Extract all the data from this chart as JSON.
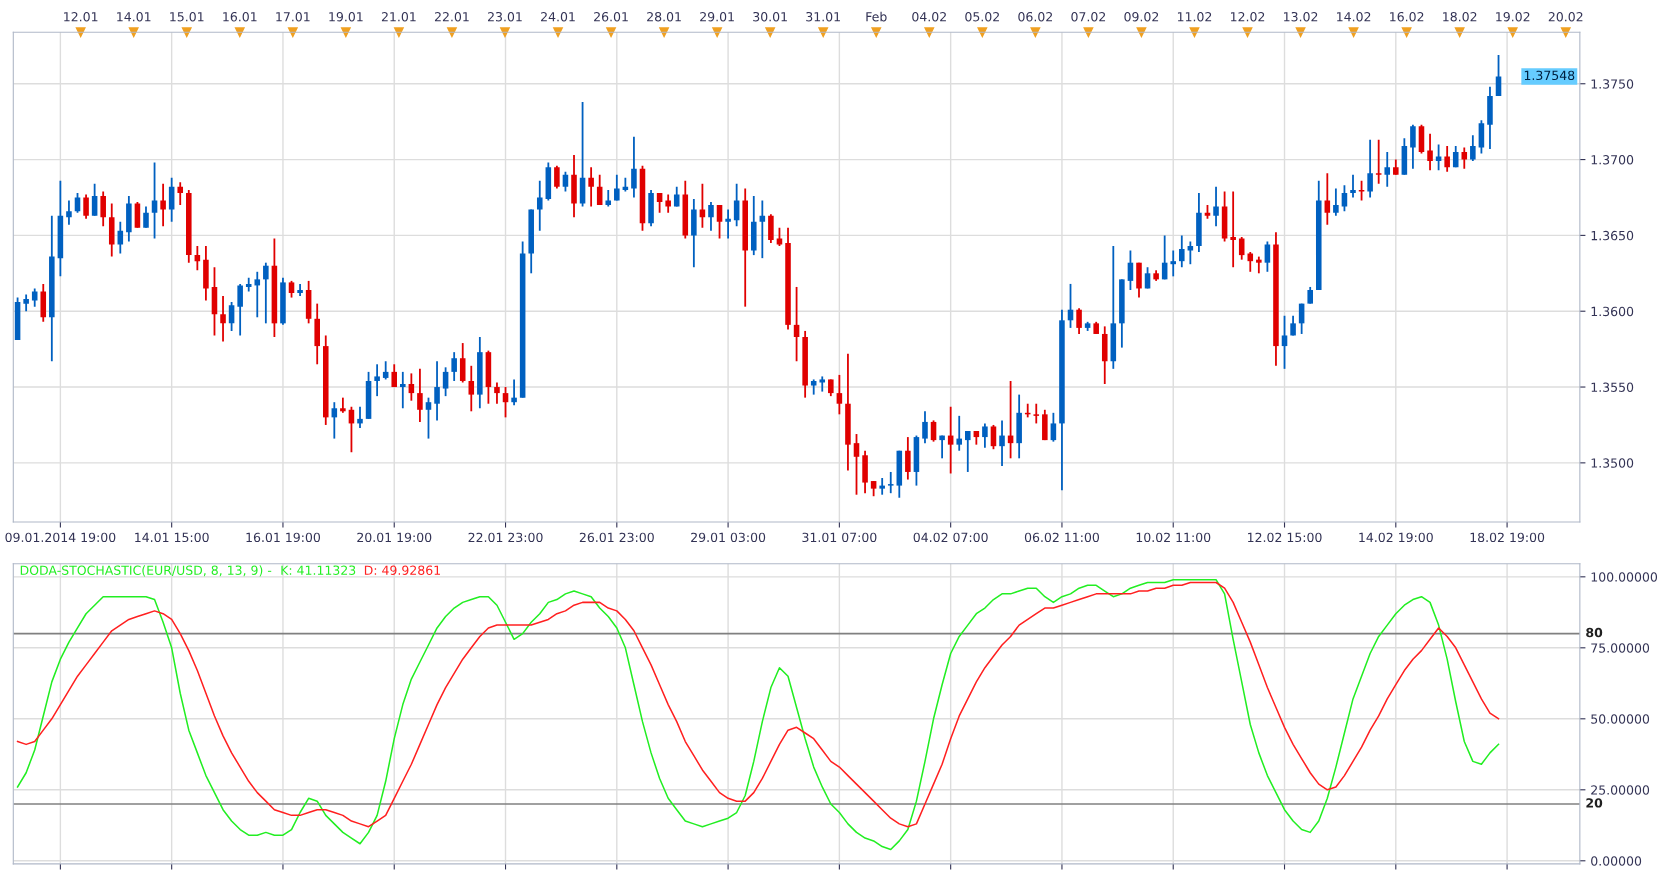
{
  "chart_data": [
    {
      "type": "candlestick",
      "categories": [
        null,
        null,
        null,
        null,
        null,
        "09.01.2014 19:00",
        null,
        null,
        null,
        null,
        null,
        null,
        null,
        null,
        null,
        null,
        null,
        null,
        "14.01 15:00",
        null,
        null,
        null,
        null,
        null,
        null,
        null,
        null,
        null,
        null,
        null,
        null,
        "16.01 19:00",
        null,
        null,
        null,
        null,
        null,
        null,
        null,
        null,
        null,
        null,
        null,
        null,
        "20.01 19:00",
        null,
        null,
        null,
        null,
        null,
        null,
        null,
        null,
        null,
        null,
        null,
        null,
        "22.01 23:00",
        null,
        null,
        null,
        null,
        null,
        null,
        null,
        null,
        null,
        null,
        null,
        null,
        "26.01 23:00",
        null,
        null,
        null,
        null,
        null,
        null,
        null,
        null,
        null,
        null,
        null,
        null,
        "29.01 03:00",
        null,
        null,
        null,
        null,
        null,
        null,
        null,
        null,
        null,
        null,
        null,
        null,
        "31.01 07:00",
        null,
        null,
        null,
        null,
        null,
        null,
        null,
        null,
        null,
        null,
        null,
        null,
        "04.02 07:00",
        null,
        null,
        null,
        null,
        null,
        null,
        null,
        null,
        null,
        null,
        null,
        null,
        "06.02 11:00",
        null,
        null,
        null,
        null,
        null,
        null,
        null,
        null,
        null,
        null,
        null,
        null,
        "10.02 11:00",
        null,
        null,
        null,
        null,
        null,
        null,
        null,
        null,
        null,
        null,
        null,
        null,
        "12.02 15:00",
        null,
        null,
        null,
        null,
        null,
        null,
        null,
        null,
        null,
        null,
        null,
        null,
        "14.02 19:00",
        null,
        null,
        null,
        null,
        null,
        null,
        null,
        null,
        null,
        null,
        null,
        null,
        "18.02 19:00",
        null,
        null,
        null,
        null,
        null,
        null,
        null,
        null
      ],
      "ohlc": [
        [
          1.3581,
          1.3609,
          1.3581,
          1.3606
        ],
        [
          1.3605,
          1.3611,
          1.36,
          1.3608
        ],
        [
          1.3607,
          1.3615,
          1.3603,
          1.3613
        ],
        [
          1.3613,
          1.3618,
          1.3593,
          1.3596
        ],
        [
          1.3596,
          1.3663,
          1.3567,
          1.3636
        ],
        [
          1.3635,
          1.3686,
          1.3623,
          1.3663
        ],
        [
          1.3662,
          1.3673,
          1.3657,
          1.3666
        ],
        [
          1.3666,
          1.3678,
          1.3665,
          1.3675
        ],
        [
          1.3675,
          1.3677,
          1.3661,
          1.3663
        ],
        [
          1.3663,
          1.3684,
          1.3663,
          1.3676
        ],
        [
          1.3676,
          1.3679,
          1.3656,
          1.3662
        ],
        [
          1.3662,
          1.3671,
          1.3636,
          1.3644
        ],
        [
          1.3644,
          1.3659,
          1.3638,
          1.3653
        ],
        [
          1.3652,
          1.3676,
          1.3646,
          1.3671
        ],
        [
          1.3671,
          1.3672,
          1.3655,
          1.3655
        ],
        [
          1.3655,
          1.3669,
          1.3655,
          1.3665
        ],
        [
          1.3665,
          1.3698,
          1.3648,
          1.3673
        ],
        [
          1.3673,
          1.3684,
          1.3656,
          1.3667
        ],
        [
          1.3667,
          1.3688,
          1.3659,
          1.3682
        ],
        [
          1.3682,
          1.3685,
          1.367,
          1.3678
        ],
        [
          1.3678,
          1.368,
          1.3632,
          1.3637
        ],
        [
          1.3637,
          1.3643,
          1.3627,
          1.3633
        ],
        [
          1.3634,
          1.3643,
          1.3607,
          1.3615
        ],
        [
          1.3616,
          1.3629,
          1.3584,
          1.3598
        ],
        [
          1.3598,
          1.361,
          1.358,
          1.3592
        ],
        [
          1.3592,
          1.3606,
          1.3587,
          1.3604
        ],
        [
          1.3603,
          1.3618,
          1.3584,
          1.3617
        ],
        [
          1.3616,
          1.3622,
          1.3613,
          1.3618
        ],
        [
          1.3617,
          1.3626,
          1.3596,
          1.3621
        ],
        [
          1.3621,
          1.3632,
          1.3592,
          1.363
        ],
        [
          1.363,
          1.3648,
          1.3583,
          1.3592
        ],
        [
          1.3592,
          1.3622,
          1.3591,
          1.3619
        ],
        [
          1.3619,
          1.362,
          1.3609,
          1.3612
        ],
        [
          1.3612,
          1.3618,
          1.361,
          1.3614
        ],
        [
          1.3614,
          1.362,
          1.3592,
          1.3595
        ],
        [
          1.3595,
          1.3605,
          1.3565,
          1.3577
        ],
        [
          1.3577,
          1.3584,
          1.3525,
          1.353
        ],
        [
          1.353,
          1.354,
          1.3516,
          1.3536
        ],
        [
          1.3536,
          1.3543,
          1.3533,
          1.3534
        ],
        [
          1.3535,
          1.3537,
          1.3507,
          1.3526
        ],
        [
          1.3526,
          1.3537,
          1.3523,
          1.3529
        ],
        [
          1.3529,
          1.356,
          1.3529,
          1.3554
        ],
        [
          1.3554,
          1.3565,
          1.3544,
          1.3557
        ],
        [
          1.3556,
          1.3567,
          1.3555,
          1.356
        ],
        [
          1.356,
          1.3565,
          1.355,
          1.355
        ],
        [
          1.355,
          1.356,
          1.3536,
          1.3552
        ],
        [
          1.3552,
          1.3559,
          1.3541,
          1.3546
        ],
        [
          1.3546,
          1.3562,
          1.3527,
          1.3535
        ],
        [
          1.3535,
          1.3543,
          1.3516,
          1.354
        ],
        [
          1.3539,
          1.3567,
          1.3528,
          1.355
        ],
        [
          1.3549,
          1.3563,
          1.3544,
          1.356
        ],
        [
          1.356,
          1.3573,
          1.3554,
          1.3569
        ],
        [
          1.3569,
          1.3579,
          1.3553,
          1.3554
        ],
        [
          1.3554,
          1.3564,
          1.3534,
          1.3545
        ],
        [
          1.3545,
          1.3583,
          1.3536,
          1.3573
        ],
        [
          1.3573,
          1.3574,
          1.3539,
          1.355
        ],
        [
          1.355,
          1.3553,
          1.3539,
          1.3546
        ],
        [
          1.3546,
          1.355,
          1.353,
          1.354
        ],
        [
          1.354,
          1.3555,
          1.3538,
          1.3543
        ],
        [
          1.3543,
          1.3646,
          1.3543,
          1.3638
        ],
        [
          1.3638,
          1.3667,
          1.3625,
          1.3667
        ],
        [
          1.3667,
          1.3686,
          1.3653,
          1.3675
        ],
        [
          1.3674,
          1.3698,
          1.3673,
          1.3695
        ],
        [
          1.3695,
          1.3696,
          1.3681,
          1.3682
        ],
        [
          1.3682,
          1.3692,
          1.3679,
          1.369
        ],
        [
          1.369,
          1.3703,
          1.3662,
          1.3671
        ],
        [
          1.3671,
          1.3738,
          1.3669,
          1.3688
        ],
        [
          1.3688,
          1.3695,
          1.3669,
          1.3682
        ],
        [
          1.3682,
          1.369,
          1.367,
          1.367
        ],
        [
          1.367,
          1.368,
          1.3669,
          1.3673
        ],
        [
          1.3673,
          1.369,
          1.3673,
          1.3681
        ],
        [
          1.368,
          1.3688,
          1.3679,
          1.3682
        ],
        [
          1.3681,
          1.3715,
          1.3675,
          1.3694
        ],
        [
          1.3694,
          1.3696,
          1.3653,
          1.3658
        ],
        [
          1.3658,
          1.368,
          1.3656,
          1.3678
        ],
        [
          1.3678,
          1.3678,
          1.3665,
          1.3672
        ],
        [
          1.3673,
          1.3677,
          1.3665,
          1.3669
        ],
        [
          1.3669,
          1.3682,
          1.3669,
          1.3677
        ],
        [
          1.3677,
          1.3686,
          1.3648,
          1.365
        ],
        [
          1.365,
          1.3674,
          1.3629,
          1.3667
        ],
        [
          1.3667,
          1.3684,
          1.3655,
          1.3662
        ],
        [
          1.3662,
          1.3672,
          1.3653,
          1.367
        ],
        [
          1.367,
          1.367,
          1.3648,
          1.3659
        ],
        [
          1.3659,
          1.3667,
          1.3648,
          1.3661
        ],
        [
          1.366,
          1.3684,
          1.3656,
          1.3673
        ],
        [
          1.3673,
          1.3681,
          1.3603,
          1.364
        ],
        [
          1.364,
          1.3676,
          1.3637,
          1.3659
        ],
        [
          1.3659,
          1.3673,
          1.3635,
          1.3663
        ],
        [
          1.3663,
          1.3664,
          1.3645,
          1.3647
        ],
        [
          1.3648,
          1.3655,
          1.3643,
          1.3644
        ],
        [
          1.3645,
          1.3655,
          1.3588,
          1.3591
        ],
        [
          1.3591,
          1.3616,
          1.3567,
          1.3583
        ],
        [
          1.3583,
          1.3587,
          1.3543,
          1.3551
        ],
        [
          1.3551,
          1.3555,
          1.3545,
          1.3554
        ],
        [
          1.3553,
          1.3557,
          1.3547,
          1.3555
        ],
        [
          1.3555,
          1.3555,
          1.3544,
          1.3546
        ],
        [
          1.3546,
          1.3558,
          1.3532,
          1.3539
        ],
        [
          1.3539,
          1.3572,
          1.3495,
          1.3512
        ],
        [
          1.3513,
          1.3519,
          1.3479,
          1.3504
        ],
        [
          1.3505,
          1.3508,
          1.348,
          1.3487
        ],
        [
          1.3488,
          1.3488,
          1.3478,
          1.3483
        ],
        [
          1.3483,
          1.349,
          1.3479,
          1.3485
        ],
        [
          1.3485,
          1.3494,
          1.348,
          1.3486
        ],
        [
          1.3485,
          1.3508,
          1.3477,
          1.3508
        ],
        [
          1.3508,
          1.3517,
          1.3489,
          1.3494
        ],
        [
          1.3494,
          1.3518,
          1.3485,
          1.3517
        ],
        [
          1.3516,
          1.3534,
          1.3513,
          1.3527
        ],
        [
          1.3527,
          1.3528,
          1.3514,
          1.3515
        ],
        [
          1.3515,
          1.3518,
          1.3503,
          1.3518
        ],
        [
          1.3518,
          1.3537,
          1.3493,
          1.3512
        ],
        [
          1.3512,
          1.3531,
          1.3508,
          1.3516
        ],
        [
          1.3515,
          1.3521,
          1.3494,
          1.3521
        ],
        [
          1.3521,
          1.3521,
          1.3512,
          1.3517
        ],
        [
          1.3517,
          1.3526,
          1.351,
          1.3524
        ],
        [
          1.3524,
          1.3525,
          1.3509,
          1.3511
        ],
        [
          1.3511,
          1.3528,
          1.3498,
          1.3518
        ],
        [
          1.3518,
          1.3554,
          1.3503,
          1.3513
        ],
        [
          1.3513,
          1.3545,
          1.3503,
          1.3533
        ],
        [
          1.3533,
          1.3539,
          1.353,
          1.3532
        ],
        [
          1.3532,
          1.3539,
          1.3526,
          1.3531
        ],
        [
          1.3532,
          1.3535,
          1.3515,
          1.3515
        ],
        [
          1.3515,
          1.3533,
          1.3514,
          1.3526
        ],
        [
          1.3526,
          1.3601,
          1.3482,
          1.3594
        ],
        [
          1.3594,
          1.3618,
          1.3589,
          1.3601
        ],
        [
          1.3601,
          1.3602,
          1.3585,
          1.3589
        ],
        [
          1.3589,
          1.3593,
          1.3587,
          1.3592
        ],
        [
          1.3592,
          1.3593,
          1.3585,
          1.3585
        ],
        [
          1.3585,
          1.359,
          1.3552,
          1.3567
        ],
        [
          1.3567,
          1.3643,
          1.3562,
          1.3592
        ],
        [
          1.3592,
          1.3621,
          1.3576,
          1.3621
        ],
        [
          1.362,
          1.364,
          1.3614,
          1.3632
        ],
        [
          1.3632,
          1.3632,
          1.3609,
          1.3615
        ],
        [
          1.3615,
          1.3629,
          1.3615,
          1.3625
        ],
        [
          1.3625,
          1.3627,
          1.362,
          1.3621
        ],
        [
          1.3621,
          1.365,
          1.3621,
          1.3632
        ],
        [
          1.3631,
          1.364,
          1.3623,
          1.3633
        ],
        [
          1.3633,
          1.365,
          1.3629,
          1.3641
        ],
        [
          1.364,
          1.3646,
          1.3631,
          1.3643
        ],
        [
          1.3643,
          1.3678,
          1.3639,
          1.3665
        ],
        [
          1.3665,
          1.367,
          1.3661,
          1.3663
        ],
        [
          1.3663,
          1.3682,
          1.3656,
          1.3669
        ],
        [
          1.3669,
          1.3679,
          1.3646,
          1.3648
        ],
        [
          1.3649,
          1.3679,
          1.3629,
          1.3647
        ],
        [
          1.3648,
          1.3649,
          1.3634,
          1.3637
        ],
        [
          1.3638,
          1.3639,
          1.3626,
          1.3633
        ],
        [
          1.3634,
          1.3636,
          1.3625,
          1.3632
        ],
        [
          1.3632,
          1.3646,
          1.3626,
          1.3644
        ],
        [
          1.3644,
          1.3652,
          1.3564,
          1.3577
        ],
        [
          1.3577,
          1.3597,
          1.3562,
          1.3584
        ],
        [
          1.3584,
          1.3597,
          1.3584,
          1.3592
        ],
        [
          1.3592,
          1.3605,
          1.3585,
          1.3605
        ],
        [
          1.3605,
          1.3616,
          1.3605,
          1.3614
        ],
        [
          1.3614,
          1.3686,
          1.3614,
          1.3673
        ],
        [
          1.3673,
          1.3691,
          1.3657,
          1.3665
        ],
        [
          1.3665,
          1.3681,
          1.3663,
          1.367
        ],
        [
          1.3669,
          1.3683,
          1.3666,
          1.3678
        ],
        [
          1.3678,
          1.369,
          1.3675,
          1.368
        ],
        [
          1.368,
          1.3686,
          1.3673,
          1.3679
        ],
        [
          1.3679,
          1.3713,
          1.3675,
          1.3691
        ],
        [
          1.3691,
          1.3713,
          1.3684,
          1.369
        ],
        [
          1.369,
          1.3705,
          1.3682,
          1.3695
        ],
        [
          1.3695,
          1.37,
          1.369,
          1.369
        ],
        [
          1.369,
          1.3714,
          1.369,
          1.3709
        ],
        [
          1.3708,
          1.3723,
          1.3694,
          1.3722
        ],
        [
          1.3722,
          1.3723,
          1.3704,
          1.3705
        ],
        [
          1.3706,
          1.3717,
          1.3693,
          1.3699
        ],
        [
          1.3699,
          1.371,
          1.3693,
          1.3702
        ],
        [
          1.3702,
          1.3709,
          1.3692,
          1.3695
        ],
        [
          1.3695,
          1.3709,
          1.3695,
          1.3705
        ],
        [
          1.3705,
          1.3708,
          1.3694,
          1.37
        ],
        [
          1.37,
          1.3716,
          1.3699,
          1.3709
        ],
        [
          1.3708,
          1.3726,
          1.3704,
          1.3724
        ],
        [
          1.3723,
          1.3748,
          1.3707,
          1.3742
        ],
        [
          1.3742,
          1.3769,
          1.3742,
          1.37548
        ],
        null,
        null,
        null,
        null,
        null,
        null,
        null,
        null,
        null
      ],
      "colors": [
        "#0060c0",
        "#0060c0",
        "#0060c0",
        "#e00000",
        "#0060c0",
        "#0060c0",
        "#0060c0",
        "#0060c0",
        "#e00000",
        "#0060c0",
        "#e00000",
        "#e00000",
        "#0060c0",
        "#0060c0",
        "#e00000",
        "#0060c0",
        "#0060c0",
        "#e00000",
        "#0060c0",
        "#e00000",
        "#e00000",
        "#e00000",
        "#e00000",
        "#e00000",
        "#e00000",
        "#0060c0",
        "#0060c0",
        "#0060c0",
        "#0060c0",
        "#0060c0",
        "#e00000",
        "#0060c0",
        "#e00000",
        "#0060c0",
        "#e00000",
        "#e00000",
        "#e00000",
        "#0060c0",
        "#e00000",
        "#e00000",
        "#0060c0",
        "#0060c0",
        "#0060c0",
        "#0060c0",
        "#e00000",
        "#0060c0",
        "#e00000",
        "#e00000",
        "#0060c0",
        "#0060c0",
        "#0060c0",
        "#0060c0",
        "#e00000",
        "#e00000",
        "#0060c0",
        "#e00000",
        "#e00000",
        "#e00000",
        "#0060c0",
        "#0060c0",
        "#0060c0",
        "#0060c0",
        "#0060c0",
        "#e00000",
        "#0060c0",
        "#e00000",
        "#0060c0",
        "#e00000",
        "#e00000",
        "#0060c0",
        "#0060c0",
        "#0060c0",
        "#0060c0",
        "#e00000",
        "#0060c0",
        "#e00000",
        "#e00000",
        "#0060c0",
        "#e00000",
        "#0060c0",
        "#e00000",
        "#0060c0",
        "#e00000",
        "#0060c0",
        "#0060c0",
        "#e00000",
        "#0060c0",
        "#0060c0",
        "#e00000",
        "#e00000",
        "#e00000",
        "#e00000",
        "#e00000",
        "#0060c0",
        "#0060c0",
        "#e00000",
        "#e00000",
        "#e00000",
        "#e00000",
        "#e00000",
        "#e00000",
        "#0060c0",
        "#0060c0",
        "#0060c0",
        "#e00000",
        "#0060c0",
        "#0060c0",
        "#e00000",
        "#0060c0",
        "#e00000",
        "#0060c0",
        "#0060c0",
        "#e00000",
        "#0060c0",
        "#e00000",
        "#0060c0",
        "#e00000",
        "#0060c0",
        "#e00000",
        "#e00000",
        "#e00000",
        "#0060c0",
        "#0060c0",
        "#0060c0",
        "#e00000",
        "#0060c0",
        "#e00000",
        "#e00000",
        "#0060c0",
        "#0060c0",
        "#0060c0",
        "#e00000",
        "#0060c0",
        "#e00000",
        "#0060c0",
        "#0060c0",
        "#0060c0",
        "#0060c0",
        "#0060c0",
        "#e00000",
        "#0060c0",
        "#e00000",
        "#e00000",
        "#e00000",
        "#e00000",
        "#e00000",
        "#0060c0",
        "#e00000",
        "#0060c0",
        "#0060c0",
        "#0060c0",
        "#0060c0",
        "#0060c0",
        "#e00000",
        "#0060c0",
        "#0060c0",
        "#0060c0",
        "#e00000",
        "#0060c0",
        "#e00000",
        "#0060c0",
        "#e00000",
        "#0060c0",
        "#0060c0",
        "#e00000",
        "#e00000",
        "#0060c0",
        "#e00000",
        "#0060c0",
        "#e00000",
        "#0060c0",
        "#0060c0",
        "#0060c0",
        "#0060c0",
        null,
        null,
        null,
        null,
        null,
        null,
        null,
        null,
        null
      ],
      "ylim": [
        1.3461,
        1.3784
      ],
      "yticks": [
        {
          "value": 1.35,
          "label": "1.3500"
        },
        {
          "value": 1.355,
          "label": "1.3550"
        },
        {
          "value": 1.36,
          "label": "1.3600"
        },
        {
          "value": 1.365,
          "label": "1.3650"
        },
        {
          "value": 1.37,
          "label": "1.3700"
        },
        {
          "value": 1.375,
          "label": "1.3750"
        }
      ],
      "annotations": [
        "12.01",
        "14.01",
        "15.01",
        "16.01",
        "17.01",
        "19.01",
        "21.01",
        "22.01",
        "23.01",
        "24.01",
        "26.01",
        "28.01",
        "29.01",
        "30.01",
        "31.01",
        "Feb",
        "04.02",
        "05.02",
        "06.02",
        "07.02",
        "09.02",
        "11.02",
        "12.02",
        "13.02",
        "14.02",
        "16.02",
        "18.02",
        "19.02",
        "20.02",
        "1.37548"
      ],
      "grid": true
    },
    {
      "type": "line",
      "title": "DODA-STOCHASTIC(EUR/USD, 8, 13, 9) -",
      "categories": [
        null,
        null,
        null,
        null,
        null,
        null,
        null,
        null,
        null,
        null,
        null,
        null,
        null,
        null,
        null,
        null,
        null,
        null,
        null,
        null,
        null,
        null,
        null,
        null,
        null,
        null,
        null,
        null,
        null,
        null,
        null,
        null,
        null,
        null,
        null,
        null,
        null,
        null,
        null,
        null,
        null,
        null,
        null,
        null,
        null,
        null,
        null,
        null,
        null,
        null,
        null,
        null,
        null,
        null,
        null,
        null,
        null,
        null,
        null,
        null,
        null,
        null,
        null,
        null,
        null,
        null,
        null,
        null,
        null,
        null,
        null,
        null,
        null,
        null,
        null,
        null,
        null,
        null,
        null,
        null,
        null,
        null,
        null,
        null,
        null,
        null,
        null,
        null,
        null,
        null,
        null,
        null,
        null,
        null,
        null,
        null,
        null,
        null,
        null,
        null,
        null,
        null,
        null,
        null,
        null,
        null,
        null,
        null,
        null,
        null,
        null,
        null,
        null,
        null,
        null,
        null,
        null,
        null,
        null,
        null,
        null,
        null,
        null,
        null,
        null,
        null,
        null,
        null,
        null,
        null,
        null,
        null,
        null,
        null,
        null,
        null,
        null,
        null,
        null,
        null,
        null,
        null,
        null,
        null,
        null,
        null,
        null,
        null,
        null,
        null,
        null,
        null,
        null,
        null,
        null,
        null,
        null,
        null,
        null,
        null,
        null,
        null,
        null,
        null,
        null,
        null,
        null,
        null,
        null,
        null,
        null,
        null,
        null,
        null,
        null,
        null,
        null,
        null,
        null,
        null,
        null,
        null,
        null
      ],
      "series": [
        {
          "name": "K: 41.11323",
          "color": "#22ee22",
          "values": [
            26,
            31,
            39,
            51,
            63,
            71,
            77,
            82,
            87,
            90,
            93,
            93,
            93,
            93,
            93,
            93,
            92,
            84,
            75,
            59,
            46,
            38,
            30,
            24,
            18,
            14,
            11,
            9,
            9,
            10,
            9,
            9,
            11,
            17,
            22,
            21,
            16,
            13,
            10,
            8,
            6,
            10,
            16,
            28,
            43,
            55,
            64,
            70,
            76,
            82,
            86,
            89,
            91,
            92,
            93,
            93,
            90,
            84,
            78,
            80,
            84,
            87,
            91,
            92,
            94,
            95,
            94,
            93,
            89,
            86,
            82,
            75,
            62,
            49,
            38,
            29,
            22,
            18,
            14,
            13,
            12,
            13,
            14,
            15,
            17,
            23,
            35,
            49,
            61,
            68,
            65,
            54,
            43,
            33,
            26,
            20,
            17,
            13,
            10,
            8,
            7,
            5,
            4,
            7,
            11,
            21,
            35,
            50,
            62,
            73,
            79,
            83,
            87,
            89,
            92,
            94,
            94,
            95,
            96,
            96,
            93,
            91,
            93,
            94,
            96,
            97,
            97,
            95,
            93,
            94,
            96,
            97,
            98,
            98,
            98,
            99,
            99,
            99,
            99,
            99,
            99,
            94,
            78,
            63,
            48,
            38,
            30,
            24,
            18,
            14,
            11,
            10,
            14,
            22,
            33,
            45,
            57,
            65,
            73,
            79,
            83,
            87,
            90,
            92,
            93,
            91,
            83,
            71,
            56,
            42,
            35,
            34,
            38,
            41,
            null,
            null,
            null,
            null,
            null,
            null,
            null,
            null,
            null
          ]
        },
        {
          "name": "D: 49.92861",
          "color": "#ff2020",
          "values": [
            42,
            41,
            42,
            46,
            50,
            55,
            60,
            65,
            69,
            73,
            77,
            81,
            83,
            85,
            86,
            87,
            88,
            87,
            85,
            80,
            74,
            67,
            59,
            51,
            44,
            38,
            33,
            28,
            24,
            21,
            18,
            17,
            16,
            16,
            17,
            18,
            18,
            17,
            16,
            14,
            13,
            12,
            14,
            16,
            22,
            28,
            34,
            41,
            48,
            55,
            61,
            66,
            71,
            75,
            79,
            82,
            83,
            83,
            83,
            83,
            83,
            84,
            85,
            87,
            88,
            90,
            91,
            91,
            91,
            89,
            88,
            85,
            81,
            75,
            69,
            62,
            55,
            49,
            42,
            37,
            32,
            28,
            24,
            22,
            21,
            21,
            24,
            29,
            35,
            41,
            46,
            47,
            45,
            43,
            39,
            35,
            33,
            30,
            27,
            24,
            21,
            18,
            15,
            13,
            12,
            13,
            20,
            27,
            34,
            43,
            51,
            57,
            63,
            68,
            72,
            76,
            79,
            83,
            85,
            87,
            89,
            89,
            90,
            91,
            92,
            93,
            94,
            94,
            94,
            94,
            94,
            95,
            95,
            96,
            96,
            97,
            97,
            98,
            98,
            98,
            98,
            96,
            91,
            84,
            77,
            69,
            61,
            54,
            47,
            41,
            36,
            31,
            27,
            25,
            26,
            30,
            35,
            40,
            46,
            51,
            57,
            62,
            67,
            71,
            74,
            78,
            82,
            79,
            75,
            69,
            63,
            57,
            52,
            50,
            null,
            null,
            null,
            null,
            null,
            null,
            null,
            null,
            null
          ]
        }
      ],
      "ylim": [
        -1.1,
        104.6
      ],
      "yticks": [
        {
          "value": 0,
          "label": "0.00000"
        },
        {
          "value": 25,
          "label": "25.00000"
        },
        {
          "value": 50,
          "label": "50.00000"
        },
        {
          "value": 75,
          "label": "75.00000"
        },
        {
          "value": 100,
          "label": "100.00000"
        }
      ],
      "ref_lines": [
        {
          "axis": "y",
          "value": 80,
          "label": "80",
          "color": "#808080"
        },
        {
          "axis": "y",
          "value": 20,
          "label": "20",
          "color": "#808080"
        }
      ],
      "tick_labels": "y",
      "grid": true
    }
  ]
}
